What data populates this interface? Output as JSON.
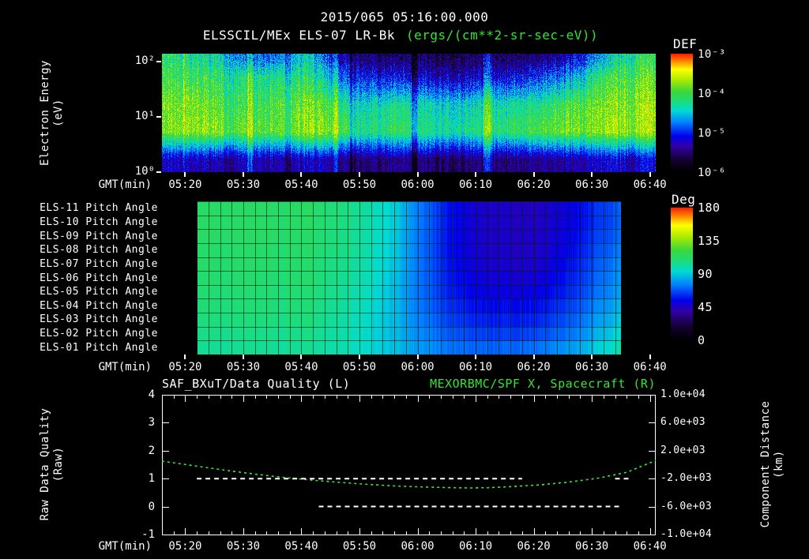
{
  "colors": {
    "background": "#000000",
    "text": "#ffffff",
    "green": "#30e630"
  },
  "header": {
    "timestamp": "2015/065 05:16:00.000",
    "instrument": "ELSSCIL/MEx ELS-07 LR-Bk",
    "units": "(ergs/(cm**2-sr-sec-eV))"
  },
  "time_axis": {
    "label": "GMT(min)",
    "ticks": [
      "05:20",
      "05:30",
      "05:40",
      "05:50",
      "06:00",
      "06:10",
      "06:20",
      "06:30",
      "06:40"
    ]
  },
  "spectrogram_panel": {
    "ylabel_line1": "Electron Energy",
    "ylabel_line2": "(eV)",
    "yticks": [
      {
        "label": "10²",
        "logE": 2
      },
      {
        "label": "10¹",
        "logE": 1
      },
      {
        "label": "10⁰",
        "logE": 0
      }
    ],
    "colorbar_title": "DEF",
    "colorbar_ticks": [
      "10⁻³",
      "10⁻⁴",
      "10⁻⁵",
      "10⁻⁶"
    ]
  },
  "pitch_panel": {
    "row_labels": [
      "ELS-11 Pitch Angle",
      "ELS-10 Pitch Angle",
      "ELS-09 Pitch Angle",
      "ELS-08 Pitch Angle",
      "ELS-07 Pitch Angle",
      "ELS-06 Pitch Angle",
      "ELS-05 Pitch Angle",
      "ELS-04 Pitch Angle",
      "ELS-03 Pitch Angle",
      "ELS-02 Pitch Angle",
      "ELS-01 Pitch Angle"
    ],
    "colorbar_title": "Deg",
    "colorbar_ticks": [
      "180",
      "135",
      "90",
      "45",
      "0"
    ]
  },
  "bottom_panel": {
    "title_left": "SAF_BXuT/Data Quality (L)",
    "title_right": "MEXORBMC/SPF X, Spacecraft (R)",
    "ylabel_left_line1": "Raw Data Quality",
    "ylabel_left_line2": "(Raw)",
    "ylabel_right_line1": "Component Distance",
    "ylabel_right_line2": "(km)",
    "yticks_left": [
      "4",
      "3",
      "2",
      "1",
      "0",
      "-1"
    ],
    "yticks_right": [
      "1.0e+04",
      "6.0e+03",
      "2.0e+03",
      "-2.0e+03",
      "-6.0e+03",
      "-1.0e+04"
    ]
  },
  "chart_data": [
    {
      "type": "heatmap",
      "name": "electron_energy_spectrogram",
      "title": "ELSSCIL/MEx ELS-07 LR-Bk",
      "units": "ergs/(cm**2-sr-sec-eV)",
      "colorbar": {
        "label": "DEF",
        "scale": "log",
        "min": 1e-06,
        "max": 0.001
      },
      "xlabel": "GMT(min)",
      "ylabel": "Electron Energy (eV)",
      "yscale": "log",
      "ylim_eV": [
        1,
        141
      ],
      "ylog_range": [
        0,
        2.15
      ],
      "x_start": "05:16",
      "x_end": "06:41",
      "x": [
        "05:16",
        "05:21",
        "05:26",
        "05:31",
        "05:36",
        "05:41",
        "05:46",
        "05:51",
        "05:56",
        "06:01",
        "06:06",
        "06:11",
        "06:16",
        "06:21",
        "06:26",
        "06:31",
        "06:36",
        "06:41"
      ],
      "energy_bands_eV": [
        [
          1,
          3
        ],
        [
          3,
          10
        ],
        [
          10,
          30
        ],
        [
          30,
          100
        ],
        [
          100,
          141
        ]
      ],
      "values_log10_def": [
        [
          -5.6,
          -5.6,
          -5.7,
          -5.7,
          -5.7,
          -5.6,
          -5.8,
          -5.9,
          -5.9,
          -5.9,
          -6.0,
          -5.9,
          -5.9,
          -5.8,
          -5.8,
          -5.6,
          -5.5,
          -5.5
        ],
        [
          -4.0,
          -3.8,
          -3.9,
          -4.1,
          -4.0,
          -3.8,
          -4.0,
          -4.4,
          -4.3,
          -4.4,
          -4.5,
          -4.4,
          -4.3,
          -4.1,
          -4.0,
          -3.9,
          -3.7,
          -3.8
        ],
        [
          -4.0,
          -3.9,
          -4.1,
          -4.3,
          -4.1,
          -3.9,
          -4.3,
          -4.6,
          -4.5,
          -4.6,
          -4.7,
          -4.6,
          -4.5,
          -4.4,
          -4.2,
          -4.0,
          -3.8,
          -3.8
        ],
        [
          -4.2,
          -4.2,
          -4.3,
          -4.5,
          -4.4,
          -4.3,
          -5.0,
          -5.4,
          -5.5,
          -5.6,
          -5.7,
          -5.6,
          -5.5,
          -5.3,
          -5.0,
          -4.4,
          -4.0,
          -4.1
        ],
        [
          -4.3,
          -4.4,
          -4.6,
          -5.2,
          -5.0,
          -4.6,
          -5.6,
          -5.9,
          -6.0,
          -6.0,
          -6.1,
          -6.0,
          -6.0,
          -5.9,
          -5.7,
          -5.0,
          -4.3,
          -4.3
        ]
      ]
    },
    {
      "type": "heatmap",
      "name": "pitch_angles",
      "colorbar": {
        "label": "Deg",
        "min": 0,
        "max": 180
      },
      "xlabel": "GMT(min)",
      "data_start": "05:22",
      "data_end": "06:35",
      "x": [
        "05:22",
        "05:26",
        "05:31",
        "05:36",
        "05:41",
        "05:46",
        "05:51",
        "05:56",
        "06:01",
        "06:06",
        "06:11",
        "06:16",
        "06:21",
        "06:26",
        "06:31",
        "06:35"
      ],
      "rows": [
        "ELS-11",
        "ELS-10",
        "ELS-09",
        "ELS-08",
        "ELS-07",
        "ELS-06",
        "ELS-05",
        "ELS-04",
        "ELS-03",
        "ELS-02",
        "ELS-01"
      ],
      "values_deg": [
        [
          112,
          112,
          112,
          112,
          112,
          108,
          101,
          90,
          72,
          55,
          47,
          45,
          45,
          50,
          60,
          70
        ],
        [
          112,
          112,
          112,
          112,
          112,
          108,
          101,
          90,
          72,
          55,
          47,
          45,
          45,
          50,
          60,
          70
        ],
        [
          112,
          112,
          112,
          112,
          111,
          107,
          100,
          89,
          71,
          55,
          47,
          45,
          46,
          51,
          62,
          72
        ],
        [
          111,
          111,
          111,
          111,
          111,
          107,
          100,
          89,
          71,
          55,
          47,
          45,
          46,
          52,
          64,
          75
        ],
        [
          111,
          111,
          111,
          111,
          110,
          106,
          99,
          88,
          71,
          56,
          48,
          46,
          47,
          54,
          66,
          78
        ],
        [
          110,
          110,
          110,
          110,
          110,
          105,
          98,
          87,
          71,
          57,
          50,
          48,
          49,
          56,
          68,
          80
        ],
        [
          109,
          109,
          109,
          109,
          109,
          104,
          97,
          86,
          71,
          58,
          52,
          50,
          52,
          58,
          70,
          82
        ],
        [
          108,
          108,
          108,
          108,
          108,
          103,
          96,
          86,
          72,
          61,
          55,
          54,
          56,
          62,
          74,
          86
        ],
        [
          107,
          107,
          107,
          107,
          107,
          102,
          95,
          86,
          74,
          64,
          59,
          58,
          60,
          66,
          78,
          90
        ],
        [
          105,
          105,
          105,
          105,
          105,
          101,
          94,
          86,
          76,
          68,
          64,
          63,
          66,
          71,
          82,
          95
        ],
        [
          103,
          103,
          103,
          103,
          103,
          100,
          94,
          87,
          79,
          73,
          70,
          70,
          73,
          78,
          88,
          100
        ]
      ]
    },
    {
      "type": "line",
      "name": "quality_and_distance",
      "xlabel": "GMT(min)",
      "x_start": "05:16",
      "x_end": "06:41",
      "ylim_left": [
        -1,
        4
      ],
      "ylim_right": [
        -10000,
        10000
      ],
      "series": [
        {
          "name": "SAF_BXuT/Data Quality (L)",
          "axis": "left",
          "style": "dashed",
          "color": "#ffffff",
          "segments": [
            {
              "level": 1,
              "start": "05:22",
              "end": "06:18"
            },
            {
              "level": 0,
              "start": "05:43",
              "end": "06:35"
            },
            {
              "level": 1,
              "start": "06:34",
              "end": "06:37"
            }
          ]
        },
        {
          "name": "MEXORBMC/SPF X, Spacecraft (R)",
          "axis": "right",
          "style": "dashed",
          "color": "#3ce83c",
          "x_minutes_from_start": [
            0,
            5,
            10,
            15,
            20,
            25,
            30,
            35,
            40,
            45,
            50,
            53,
            56,
            60,
            65,
            70,
            75,
            80,
            85
          ],
          "values_km": [
            500,
            -100,
            -700,
            -1250,
            -1750,
            -2150,
            -2500,
            -2800,
            -3050,
            -3200,
            -3300,
            -3330,
            -3300,
            -3150,
            -2900,
            -2500,
            -1950,
            -1100,
            600
          ]
        }
      ]
    }
  ]
}
